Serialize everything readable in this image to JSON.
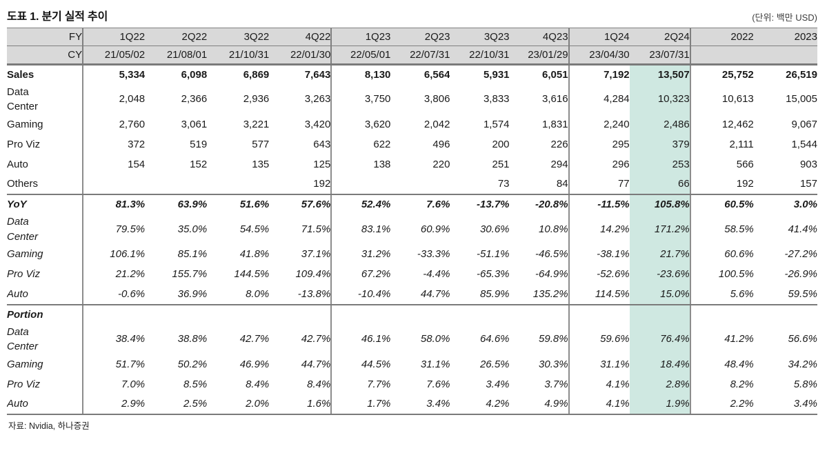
{
  "title": "도표 1. 분기 실적 추이",
  "unit_note": "(단위: 백만 USD)",
  "source": "자료: Nvidia, 하나증권",
  "highlight": {
    "column_fy": "2Q24",
    "column_index": 9,
    "color": "#cfe8e1"
  },
  "header": {
    "fy_label": "FY",
    "cy_label": "CY",
    "fy": [
      "1Q22",
      "2Q22",
      "3Q22",
      "4Q22",
      "1Q23",
      "2Q23",
      "3Q23",
      "4Q23",
      "1Q24",
      "2Q24",
      "2022",
      "2023"
    ],
    "cy": [
      "21/05/02",
      "21/08/01",
      "21/10/31",
      "22/01/30",
      "22/05/01",
      "22/07/31",
      "22/10/31",
      "23/01/29",
      "23/04/30",
      "23/07/31",
      "",
      ""
    ]
  },
  "sections": [
    {
      "name": "sales",
      "rows": [
        {
          "label": "Sales",
          "bold": true,
          "values": [
            "5,334",
            "6,098",
            "6,869",
            "7,643",
            "8,130",
            "6,564",
            "5,931",
            "6,051",
            "7,192",
            "13,507",
            "25,752",
            "26,519"
          ]
        },
        {
          "label": "Data\nCenter",
          "bold": false,
          "values": [
            "2,048",
            "2,366",
            "2,936",
            "3,263",
            "3,750",
            "3,806",
            "3,833",
            "3,616",
            "4,284",
            "10,323",
            "10,613",
            "15,005"
          ]
        },
        {
          "label": "Gaming",
          "bold": false,
          "values": [
            "2,760",
            "3,061",
            "3,221",
            "3,420",
            "3,620",
            "2,042",
            "1,574",
            "1,831",
            "2,240",
            "2,486",
            "12,462",
            "9,067"
          ]
        },
        {
          "label": "Pro Viz",
          "bold": false,
          "values": [
            "372",
            "519",
            "577",
            "643",
            "622",
            "496",
            "200",
            "226",
            "295",
            "379",
            "2,111",
            "1,544"
          ]
        },
        {
          "label": "Auto",
          "bold": false,
          "values": [
            "154",
            "152",
            "135",
            "125",
            "138",
            "220",
            "251",
            "294",
            "296",
            "253",
            "566",
            "903"
          ]
        },
        {
          "label": "Others",
          "bold": false,
          "values": [
            "",
            "",
            "",
            "192",
            "",
            "",
            "73",
            "84",
            "77",
            "66",
            "192",
            "157"
          ]
        }
      ]
    },
    {
      "name": "yoy",
      "rows": [
        {
          "label": "YoY",
          "bold": true,
          "values": [
            "81.3%",
            "63.9%",
            "51.6%",
            "57.6%",
            "52.4%",
            "7.6%",
            "-13.7%",
            "-20.8%",
            "-11.5%",
            "105.8%",
            "60.5%",
            "3.0%"
          ]
        },
        {
          "label": "Data\nCenter",
          "bold": false,
          "values": [
            "79.5%",
            "35.0%",
            "54.5%",
            "71.5%",
            "83.1%",
            "60.9%",
            "30.6%",
            "10.8%",
            "14.2%",
            "171.2%",
            "58.5%",
            "41.4%"
          ]
        },
        {
          "label": "Gaming",
          "bold": false,
          "values": [
            "106.1%",
            "85.1%",
            "41.8%",
            "37.1%",
            "31.2%",
            "-33.3%",
            "-51.1%",
            "-46.5%",
            "-38.1%",
            "21.7%",
            "60.6%",
            "-27.2%"
          ]
        },
        {
          "label": "Pro Viz",
          "bold": false,
          "values": [
            "21.2%",
            "155.7%",
            "144.5%",
            "109.4%",
            "67.2%",
            "-4.4%",
            "-65.3%",
            "-64.9%",
            "-52.6%",
            "-23.6%",
            "100.5%",
            "-26.9%"
          ]
        },
        {
          "label": "Auto",
          "bold": false,
          "values": [
            "-0.6%",
            "36.9%",
            "8.0%",
            "-13.8%",
            "-10.4%",
            "44.7%",
            "85.9%",
            "135.2%",
            "114.5%",
            "15.0%",
            "5.6%",
            "59.5%"
          ]
        }
      ]
    },
    {
      "name": "portion",
      "rows": [
        {
          "label": "Portion",
          "bold": true,
          "values": [
            "",
            "",
            "",
            "",
            "",
            "",
            "",
            "",
            "",
            "",
            "",
            ""
          ]
        },
        {
          "label": "Data\nCenter",
          "bold": false,
          "values": [
            "38.4%",
            "38.8%",
            "42.7%",
            "42.7%",
            "46.1%",
            "58.0%",
            "64.6%",
            "59.8%",
            "59.6%",
            "76.4%",
            "41.2%",
            "56.6%"
          ]
        },
        {
          "label": "Gaming",
          "bold": false,
          "values": [
            "51.7%",
            "50.2%",
            "46.9%",
            "44.7%",
            "44.5%",
            "31.1%",
            "26.5%",
            "30.3%",
            "31.1%",
            "18.4%",
            "48.4%",
            "34.2%"
          ]
        },
        {
          "label": "Pro Viz",
          "bold": false,
          "values": [
            "7.0%",
            "8.5%",
            "8.4%",
            "8.4%",
            "7.7%",
            "7.6%",
            "3.4%",
            "3.7%",
            "4.1%",
            "2.8%",
            "8.2%",
            "5.8%"
          ]
        },
        {
          "label": "Auto",
          "bold": false,
          "values": [
            "2.9%",
            "2.5%",
            "2.0%",
            "1.6%",
            "1.7%",
            "3.4%",
            "4.2%",
            "4.9%",
            "4.1%",
            "1.9%",
            "2.2%",
            "3.4%"
          ]
        }
      ]
    }
  ]
}
